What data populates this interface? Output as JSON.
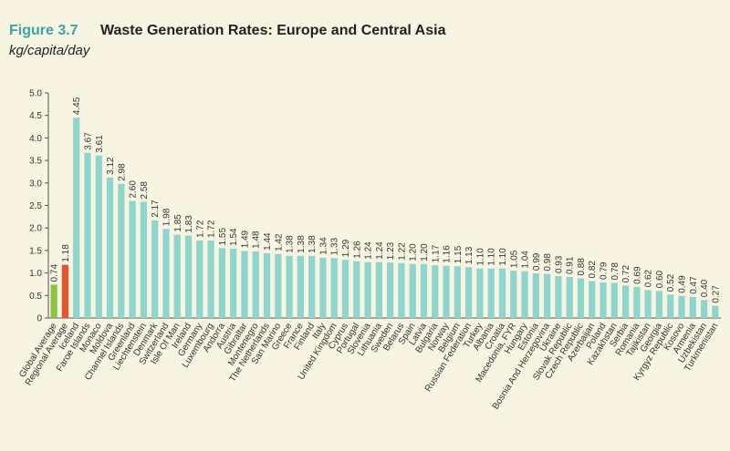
{
  "chart_data": {
    "type": "bar",
    "figure_label": "Figure 3.7",
    "title": "Waste Generation Rates: Europe and Central Asia",
    "subtitle": "kg/capita/day",
    "categories": [
      "Global Average",
      "Regional Average",
      "Iceland",
      "Faroe Islands",
      "Monaco",
      "Moldova",
      "Channel Islands",
      "Greenland",
      "Liechtenstein",
      "Denmark",
      "Switzerland",
      "Isle Of Man",
      "Ireland",
      "Germany",
      "Luxembourg",
      "Andorra",
      "Austria",
      "Gibraltar",
      "Montenegro",
      "The Netherlands",
      "San Marino",
      "Greece",
      "France",
      "Finland",
      "Italy",
      "United Kingdom",
      "Cyprus",
      "Portugal",
      "Slovenia",
      "Lithuania",
      "Sweden",
      "Belarus",
      "Spain",
      "Latvia",
      "Bulgaria",
      "Norway",
      "Belgium",
      "Russian Federation",
      "Turkey",
      "Albania",
      "Croatia",
      "Macedonia, FYR",
      "Hungary",
      "Estonia",
      "Bosnia And Herzegovina",
      "Ukraine",
      "Slovak Republic",
      "Czech Republic",
      "Azerbaijan",
      "Poland",
      "Kazakhstan",
      "Serbia",
      "Romania",
      "Tajikistan",
      "Georgia",
      "Kyrgyz Republic",
      "Kosovo",
      "Armenia",
      "Uzbekistan",
      "Turkmenistan"
    ],
    "values": [
      0.74,
      1.18,
      4.45,
      3.67,
      3.61,
      3.12,
      2.98,
      2.6,
      2.58,
      2.17,
      1.98,
      1.85,
      1.83,
      1.72,
      1.72,
      1.55,
      1.54,
      1.49,
      1.48,
      1.44,
      1.42,
      1.38,
      1.38,
      1.38,
      1.34,
      1.33,
      1.29,
      1.26,
      1.24,
      1.24,
      1.23,
      1.22,
      1.2,
      1.2,
      1.17,
      1.16,
      1.15,
      1.13,
      1.1,
      1.1,
      1.1,
      1.05,
      1.04,
      0.99,
      0.98,
      0.93,
      0.91,
      0.88,
      0.82,
      0.79,
      0.78,
      0.72,
      0.69,
      0.62,
      0.6,
      0.52,
      0.49,
      0.47,
      0.4,
      0.27
    ],
    "value_labels": [
      "0.74",
      "1.18",
      "4.45",
      "3.67",
      "3.61",
      "3.12",
      "2.98",
      "2.60",
      "2.58",
      "2.17",
      "1.98",
      "1.85",
      "1.83",
      "1.72",
      "1.72",
      "1.55",
      "1.54",
      "1.49",
      "1.48",
      "1.44",
      "1.42",
      "1.38",
      "1.38",
      "1.38",
      "1.34",
      "1.33",
      "1.29",
      "1.26",
      "1.24",
      "1.24",
      "1.23",
      "1.22",
      "1.20",
      "1.20",
      "1.17",
      "1.16",
      "1.15",
      "1.13",
      "1.10",
      "1.10",
      "1.10",
      "1.05",
      "1.04",
      "0.99",
      "0.98",
      "0.93",
      "0.91",
      "0.88",
      "0.82",
      "0.79",
      "0.78",
      "0.72",
      "0.69",
      "0.62",
      "0.60",
      "0.52",
      "0.49",
      "0.47",
      "0.40",
      "0.27"
    ],
    "colors": [
      "#8cc63e",
      "#e4572e",
      "#8ed5cd",
      "#8ed5cd",
      "#8ed5cd",
      "#8ed5cd",
      "#8ed5cd",
      "#8ed5cd",
      "#8ed5cd",
      "#8ed5cd",
      "#8ed5cd",
      "#8ed5cd",
      "#8ed5cd",
      "#8ed5cd",
      "#8ed5cd",
      "#8ed5cd",
      "#8ed5cd",
      "#8ed5cd",
      "#8ed5cd",
      "#8ed5cd",
      "#8ed5cd",
      "#8ed5cd",
      "#8ed5cd",
      "#8ed5cd",
      "#8ed5cd",
      "#8ed5cd",
      "#8ed5cd",
      "#8ed5cd",
      "#8ed5cd",
      "#8ed5cd",
      "#8ed5cd",
      "#8ed5cd",
      "#8ed5cd",
      "#8ed5cd",
      "#8ed5cd",
      "#8ed5cd",
      "#8ed5cd",
      "#8ed5cd",
      "#8ed5cd",
      "#8ed5cd",
      "#8ed5cd",
      "#8ed5cd",
      "#8ed5cd",
      "#8ed5cd",
      "#8ed5cd",
      "#8ed5cd",
      "#8ed5cd",
      "#8ed5cd",
      "#8ed5cd",
      "#8ed5cd",
      "#8ed5cd",
      "#8ed5cd",
      "#8ed5cd",
      "#8ed5cd",
      "#8ed5cd",
      "#8ed5cd",
      "#8ed5cd",
      "#8ed5cd",
      "#8ed5cd",
      "#8ed5cd"
    ],
    "ylim": [
      0,
      5
    ],
    "yticks": [
      0,
      0.5,
      {
        "value": 1,
        "label": "1.0"
      },
      1.5,
      {
        "value": 2,
        "label": "2.0"
      },
      2.5,
      {
        "value": 3,
        "label": "3.0"
      },
      3.5,
      {
        "value": 4,
        "label": "4.0"
      },
      4.5,
      {
        "value": 5,
        "label": "5.0"
      }
    ],
    "grid": false
  }
}
